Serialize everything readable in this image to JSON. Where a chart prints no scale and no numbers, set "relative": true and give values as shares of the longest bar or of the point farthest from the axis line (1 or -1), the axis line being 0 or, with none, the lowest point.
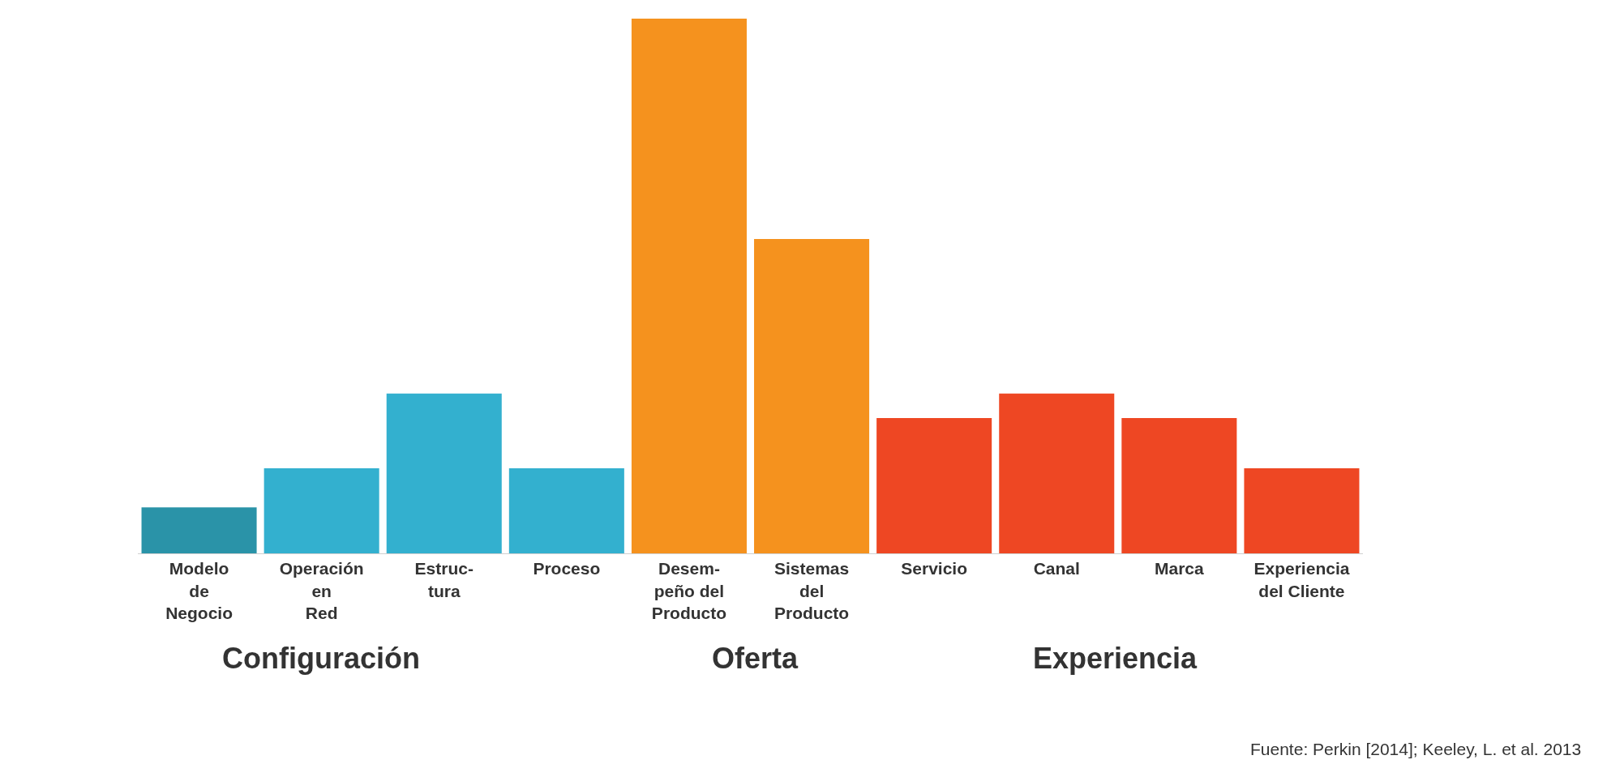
{
  "chart_data": {
    "type": "bar",
    "categories": [
      "Modelo\nde\nNegocio",
      "Operación\nen\nRed",
      "Estruc-\ntura",
      "Proceso",
      "Desem-\npeño del\nProducto",
      "Sistemas\ndel\nProducto",
      "Servicio",
      "Canal",
      "Marca",
      "Experiencia\ndel Cliente"
    ],
    "values": [
      0.086,
      0.159,
      0.299,
      0.159,
      1,
      0.588,
      0.253,
      0.299,
      0.253,
      0.159
    ],
    "colors": [
      "#2a93a8",
      "#33b0cf",
      "#33b0cf",
      "#33b0cf",
      "#f5921e",
      "#f5921e",
      "#ee4723",
      "#ee4723",
      "#ee4723",
      "#ee4723"
    ],
    "annotations": [
      "Configuración",
      "Oferta",
      "Experiencia",
      "Fuente: Perkin [2014]; Keeley, L. et al. 2013"
    ],
    "relative": true
  }
}
